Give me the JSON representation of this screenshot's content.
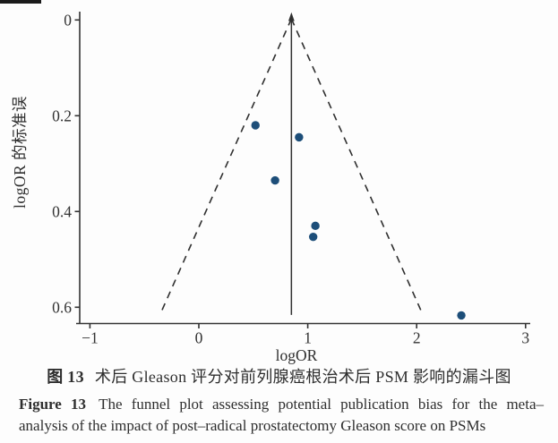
{
  "captions": {
    "cn_label": "图 13",
    "cn_text": "术后 Gleason 评分对前列腺癌根治术后 PSM 影响的漏斗图",
    "en_label": "Figure 13",
    "en_line1": "The funnel plot assessing potential publication bias for the meta–",
    "en_line2": "analysis of the impact of post–radical prostatectomy Gleason score on PSMs"
  },
  "chart_data": {
    "type": "scatter",
    "title": "",
    "xlabel": "logOR",
    "ylabel": "logOR 的标准误",
    "xlim": [
      -1,
      3
    ],
    "ylim": [
      0,
      0.65
    ],
    "y_axis_inverted": true,
    "grid": false,
    "legend": null,
    "x_ticks": {
      "values": [
        -1,
        0,
        1,
        2,
        3
      ],
      "labels": [
        "−1",
        "0",
        "1",
        "2",
        "3"
      ]
    },
    "y_ticks": {
      "values": [
        0,
        0.2,
        0.4,
        0.6
      ],
      "labels": [
        "0",
        "0.2",
        "0.4",
        "0.6"
      ]
    },
    "series": [
      {
        "name": "studies",
        "points": [
          [
            0.52,
            0.22
          ],
          [
            0.92,
            0.245
          ],
          [
            0.7,
            0.335
          ],
          [
            1.07,
            0.43
          ],
          [
            1.05,
            0.453
          ],
          [
            2.41,
            0.617
          ]
        ]
      }
    ],
    "funnel": {
      "center_logOR": 0.85,
      "z": 1.96,
      "se_bottom": 0.616,
      "pseudo_ci_style": "dashed",
      "center_line_style": "solid-with-arrow"
    },
    "colors": {
      "point": "#1d4e79",
      "axis": "#333333",
      "line": "#2f2f2f"
    }
  }
}
